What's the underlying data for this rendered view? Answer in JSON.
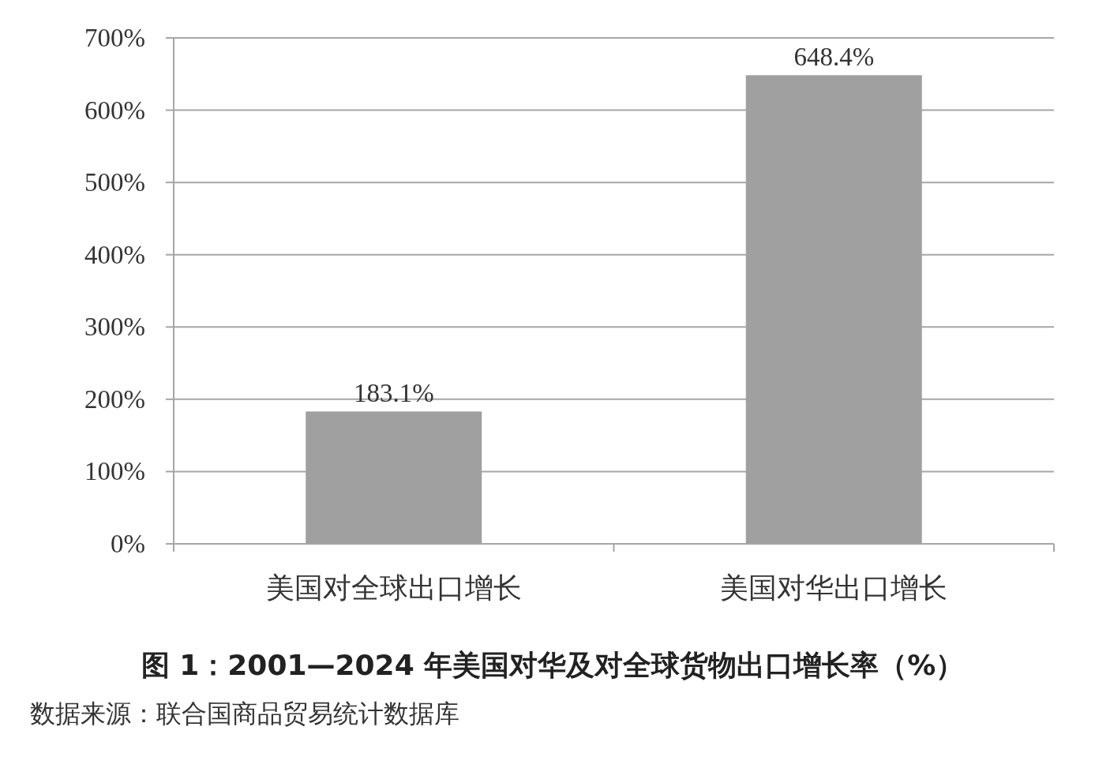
{
  "chart_data": {
    "type": "bar",
    "title": "图 1：2001—2024 年美国对华及对全球货物出口增长率（%）",
    "categories": [
      "美国对全球出口增长",
      "美国对华出口增长"
    ],
    "values": [
      183.1,
      648.4
    ],
    "value_labels": [
      "183.1%",
      "648.4%"
    ],
    "color": "#a0a0a0",
    "ylim": [
      0,
      700
    ],
    "yticks": [
      {
        "value": 0,
        "label": "0%"
      },
      {
        "value": 100,
        "label": "100%"
      },
      {
        "value": 200,
        "label": "200%"
      },
      {
        "value": 300,
        "label": "300%"
      },
      {
        "value": 400,
        "label": "400%"
      },
      {
        "value": 500,
        "label": "500%"
      },
      {
        "value": 600,
        "label": "600%"
      },
      {
        "value": 700,
        "label": "700%"
      }
    ],
    "grid": "y",
    "annotations": [
      "数据来源：联合国商品贸易统计数据库"
    ]
  }
}
